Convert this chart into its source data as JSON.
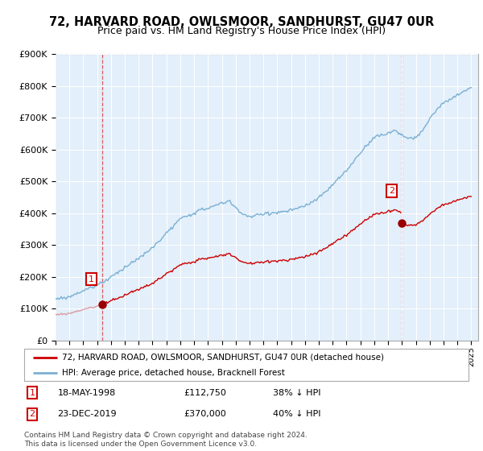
{
  "title": "72, HARVARD ROAD, OWLSMOOR, SANDHURST, GU47 0UR",
  "subtitle": "Price paid vs. HM Land Registry's House Price Index (HPI)",
  "ylim": [
    0,
    900000
  ],
  "yticks": [
    0,
    100000,
    200000,
    300000,
    400000,
    500000,
    600000,
    700000,
    800000,
    900000
  ],
  "ytick_labels": [
    "£0",
    "£100K",
    "£200K",
    "£300K",
    "£400K",
    "£500K",
    "£600K",
    "£700K",
    "£800K",
    "£900K"
  ],
  "sale1_date": 1998.37,
  "sale1_price": 112750,
  "sale2_date": 2019.97,
  "sale2_price": 370000,
  "red_line_color": "#cc0000",
  "blue_line_color": "#7ab0d4",
  "sale_marker_color": "#990000",
  "background_color": "#ffffff",
  "plot_bg_color": "#e8f0f8",
  "grid_color": "#ffffff",
  "legend_line1": "72, HARVARD ROAD, OWLSMOOR, SANDHURST, GU47 0UR (detached house)",
  "legend_line2": "HPI: Average price, detached house, Bracknell Forest",
  "annotation1_date": "18-MAY-1998",
  "annotation1_price": "£112,750",
  "annotation1_hpi": "38% ↓ HPI",
  "annotation2_date": "23-DEC-2019",
  "annotation2_price": "£370,000",
  "annotation2_hpi": "40% ↓ HPI",
  "footer": "Contains HM Land Registry data © Crown copyright and database right 2024.\nThis data is licensed under the Open Government Licence v3.0.",
  "title_fontsize": 10.5,
  "subtitle_fontsize": 9
}
